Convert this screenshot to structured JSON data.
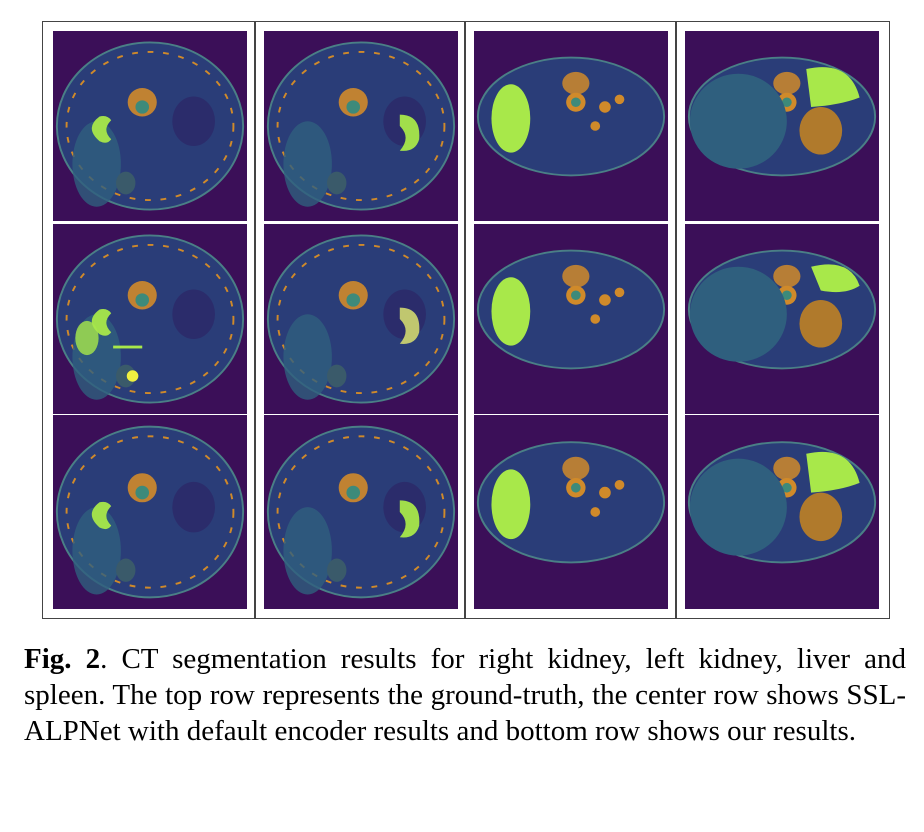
{
  "figure": {
    "columns": [
      "right-kidney",
      "left-kidney",
      "liver",
      "spleen"
    ],
    "rows": [
      "ground-truth",
      "ssl-alpnet",
      "ours"
    ],
    "colors": {
      "background": "#3b0f58",
      "body": "#2a3d78",
      "tissue": "#2f5f7e",
      "bone": "#d08a2a",
      "organ_mask": "#a8e84a",
      "error": "#f0f040"
    }
  },
  "caption": {
    "label": "Fig. 2",
    "text": ". CT segmentation results for right kidney, left kidney, liver and spleen. The top row represents the ground-truth, the center row shows SSL-ALPNet with default encoder results and bottom row shows our results."
  }
}
